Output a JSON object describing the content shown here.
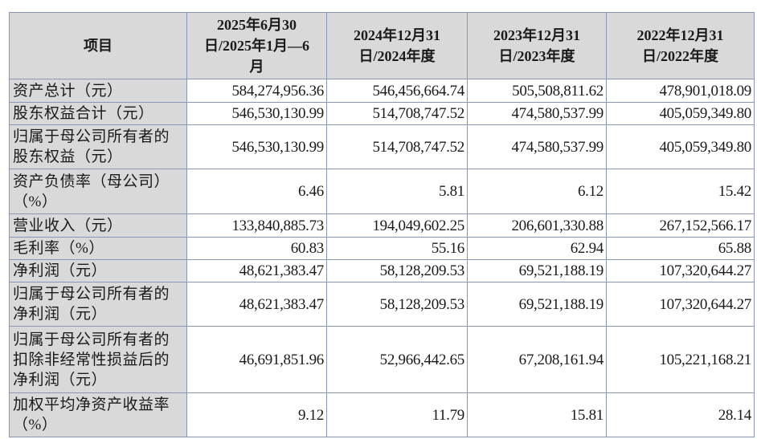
{
  "table": {
    "headers": [
      "项目",
      "2025年6月30日/2025年1月—6月",
      "2024年12月31日/2024年度",
      "2023年12月31日/2023年度",
      "2022年12月31日/2022年度"
    ],
    "rows": [
      {
        "label": "资产总计（元）",
        "values": [
          "584,274,956.36",
          "546,456,664.74",
          "505,508,811.62",
          "478,901,018.09"
        ]
      },
      {
        "label": "股东权益合计（元）",
        "values": [
          "546,530,130.99",
          "514,708,747.52",
          "474,580,537.99",
          "405,059,349.80"
        ]
      },
      {
        "label": "归属于母公司所有者的股东权益（元）",
        "values": [
          "546,530,130.99",
          "514,708,747.52",
          "474,580,537.99",
          "405,059,349.80"
        ]
      },
      {
        "label": "资产负债率（母公司）（%）",
        "values": [
          "6.46",
          "5.81",
          "6.12",
          "15.42"
        ]
      },
      {
        "label": "营业收入（元）",
        "values": [
          "133,840,885.73",
          "194,049,602.25",
          "206,601,330.88",
          "267,152,566.17"
        ]
      },
      {
        "label": "毛利率（%）",
        "values": [
          "60.83",
          "55.16",
          "62.94",
          "65.88"
        ]
      },
      {
        "label": "净利润（元）",
        "values": [
          "48,621,383.47",
          "58,128,209.53",
          "69,521,188.19",
          "107,320,644.27"
        ]
      },
      {
        "label": "归属于母公司所有者的净利润（元）",
        "values": [
          "48,621,383.47",
          "58,128,209.53",
          "69,521,188.19",
          "107,320,644.27"
        ]
      },
      {
        "label": "归属于母公司所有者的扣除非经常性损益后的净利润（元）",
        "values": [
          "46,691,851.96",
          "52,966,442.65",
          "67,208,161.94",
          "105,221,168.21"
        ]
      },
      {
        "label": "加权平均净资产收益率（%）",
        "values": [
          "9.12",
          "11.79",
          "15.81",
          "28.14"
        ]
      }
    ]
  }
}
